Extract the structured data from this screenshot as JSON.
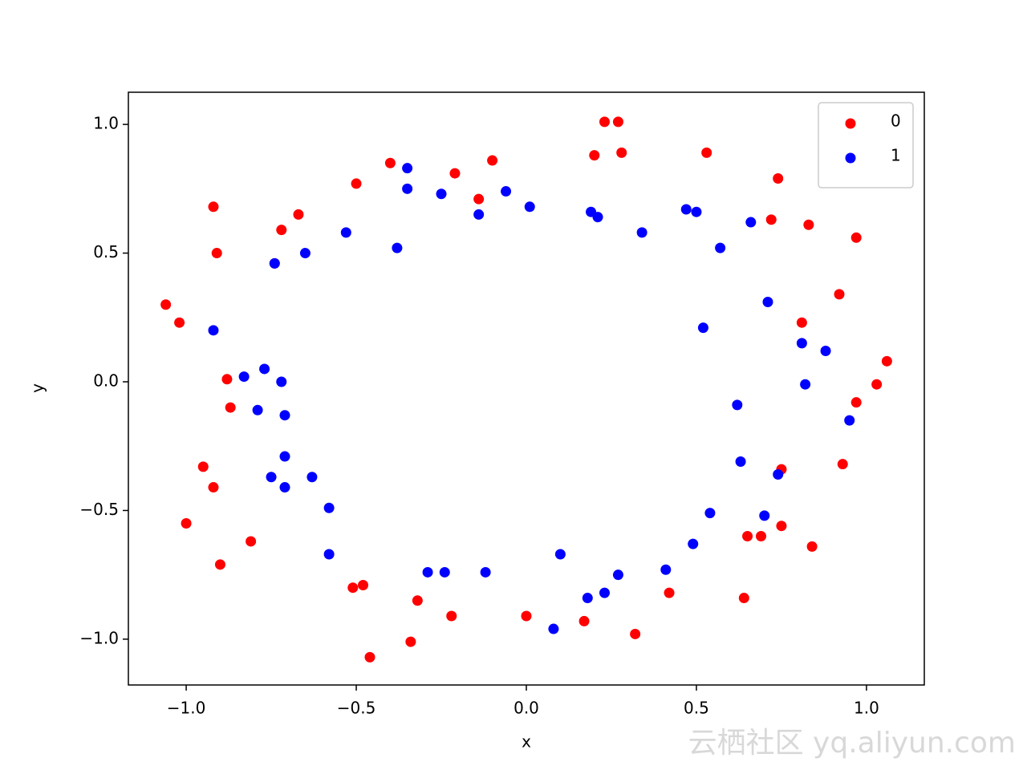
{
  "chart_data": {
    "type": "scatter",
    "x_label": "x",
    "y_label": "y",
    "xlim": [
      -1.17,
      1.17
    ],
    "ylim": [
      -1.178,
      1.125
    ],
    "xticks": [
      {
        "value": -1.0,
        "label": "−1.0"
      },
      {
        "value": -0.5,
        "label": "−0.5"
      },
      {
        "value": 0.0,
        "label": "0.0"
      },
      0.5,
      {
        "value": 1.0,
        "label": "1.0"
      }
    ],
    "yticks": [
      {
        "value": -1.0,
        "label": "−1.0"
      },
      {
        "value": -0.5,
        "label": "−0.5"
      },
      {
        "value": 0.0,
        "label": "0.0"
      },
      0.5,
      {
        "value": 1.0,
        "label": "1.0"
      }
    ],
    "legend": "upper right",
    "series": [
      {
        "name": "0",
        "color": "#ff0000",
        "x": [
          0.23,
          0.27,
          0.2,
          0.28,
          0.53,
          0.74,
          0.72,
          0.83,
          0.97,
          0.92,
          0.81,
          1.06,
          1.03,
          0.97,
          0.93,
          0.75,
          0.75,
          0.84,
          0.69,
          0.65,
          0.64,
          0.42,
          0.32,
          0.17,
          0.0,
          -0.22,
          -0.34,
          -0.32,
          -0.46,
          -0.48,
          -0.51,
          -0.81,
          -0.9,
          -1.0,
          -0.92,
          -0.95,
          -0.87,
          -0.88,
          -1.02,
          -1.06,
          -0.91,
          -0.92,
          -0.74,
          -0.72,
          -0.67,
          -0.5,
          -0.4,
          -0.21,
          -0.14,
          -0.1
        ],
        "values": [
          1.01,
          1.01,
          0.88,
          0.89,
          0.89,
          0.79,
          0.63,
          0.61,
          0.56,
          0.34,
          0.23,
          0.08,
          -0.01,
          -0.08,
          -0.32,
          -0.34,
          -0.56,
          -0.64,
          -0.6,
          -0.6,
          -0.84,
          -0.82,
          -0.98,
          -0.93,
          -0.91,
          -0.91,
          -1.01,
          -0.85,
          -1.07,
          -0.79,
          -0.8,
          -0.62,
          -0.71,
          -0.55,
          -0.41,
          -0.33,
          -0.1,
          0.01,
          0.23,
          0.3,
          0.5,
          0.68,
          0.46,
          0.59,
          0.65,
          0.77,
          0.85,
          0.81,
          0.71,
          0.86
        ]
      },
      {
        "name": "1",
        "color": "#0000ff",
        "x": [
          -0.35,
          -0.35,
          -0.25,
          -0.06,
          0.01,
          -0.14,
          0.19,
          0.21,
          0.34,
          0.47,
          0.5,
          0.66,
          0.57,
          -0.53,
          -0.65,
          -0.74,
          -0.38,
          -0.92,
          -0.83,
          -0.77,
          -0.72,
          -0.79,
          -0.71,
          -0.71,
          -0.75,
          -0.71,
          -0.63,
          -0.58,
          -0.58,
          -0.29,
          -0.24,
          -0.12,
          0.08,
          0.1,
          0.18,
          0.23,
          0.27,
          0.41,
          0.49,
          0.54,
          0.7,
          0.74,
          0.63,
          0.62,
          0.71,
          0.52,
          0.81,
          0.88,
          0.82,
          0.95
        ],
        "values": [
          0.83,
          0.75,
          0.73,
          0.74,
          0.68,
          0.65,
          0.66,
          0.64,
          0.58,
          0.67,
          0.66,
          0.62,
          0.52,
          0.58,
          0.5,
          0.46,
          0.52,
          0.2,
          0.02,
          0.05,
          0.0,
          -0.11,
          -0.13,
          -0.29,
          -0.37,
          -0.41,
          -0.37,
          -0.49,
          -0.67,
          -0.74,
          -0.74,
          -0.74,
          -0.96,
          -0.67,
          -0.84,
          -0.82,
          -0.75,
          -0.73,
          -0.63,
          -0.51,
          -0.52,
          -0.36,
          -0.31,
          -0.09,
          0.31,
          0.21,
          0.15,
          0.12,
          -0.01,
          -0.15
        ]
      }
    ]
  },
  "watermark": "云栖社区 yq.aliyun.com"
}
